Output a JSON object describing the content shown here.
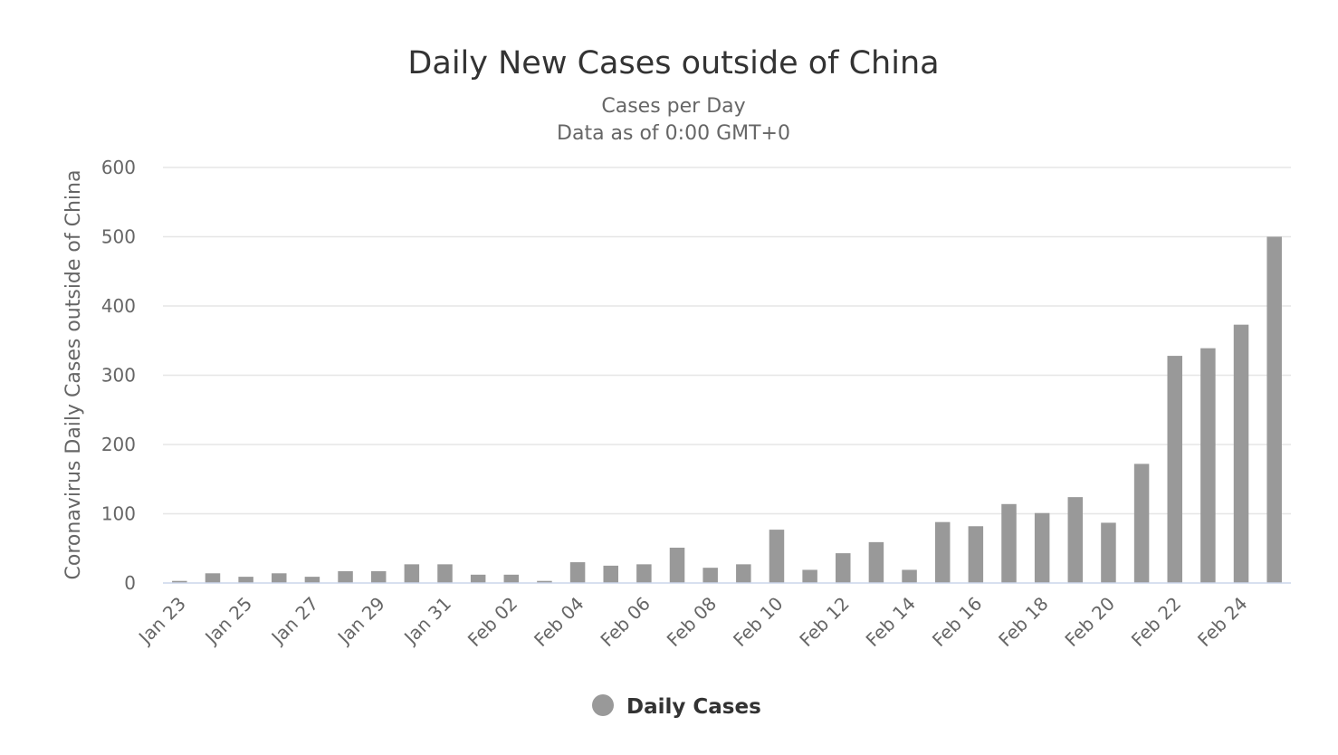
{
  "chart_data": {
    "type": "bar",
    "title": "Daily New Cases outside of China",
    "subtitle_lines": [
      "Cases per Day",
      "Data as of 0:00 GMT+0"
    ],
    "xlabel": "",
    "ylabel": "Coronavirus Daily Cases outside of China",
    "ylim": [
      0,
      600
    ],
    "yticks": [
      0,
      100,
      200,
      300,
      400,
      500,
      600
    ],
    "grid": true,
    "legend_position": "bottom-center",
    "categories": [
      "Jan 23",
      "Jan 24",
      "Jan 25",
      "Jan 26",
      "Jan 27",
      "Jan 28",
      "Jan 29",
      "Jan 30",
      "Jan 31",
      "Feb 01",
      "Feb 02",
      "Feb 03",
      "Feb 04",
      "Feb 05",
      "Feb 06",
      "Feb 07",
      "Feb 08",
      "Feb 09",
      "Feb 10",
      "Feb 11",
      "Feb 12",
      "Feb 13",
      "Feb 14",
      "Feb 15",
      "Feb 16",
      "Feb 17",
      "Feb 18",
      "Feb 19",
      "Feb 20",
      "Feb 21",
      "Feb 22",
      "Feb 23",
      "Feb 24",
      "Feb 25"
    ],
    "xtick_labels": [
      "Jan 23",
      "",
      "Jan 25",
      "",
      "Jan 27",
      "",
      "Jan 29",
      "",
      "Jan 31",
      "",
      "Feb 02",
      "",
      "Feb 04",
      "",
      "Feb 06",
      "",
      "Feb 08",
      "",
      "Feb 10",
      "",
      "Feb 12",
      "",
      "Feb 14",
      "",
      "Feb 16",
      "",
      "Feb 18",
      "",
      "Feb 20",
      "",
      "Feb 22",
      "",
      "Feb 24",
      ""
    ],
    "series": [
      {
        "name": "Daily Cases",
        "color": "#999999",
        "values": [
          3,
          14,
          9,
          14,
          9,
          17,
          17,
          27,
          27,
          12,
          12,
          3,
          30,
          25,
          27,
          51,
          22,
          27,
          77,
          19,
          43,
          59,
          19,
          88,
          82,
          114,
          101,
          124,
          87,
          172,
          328,
          339,
          373,
          500
        ]
      }
    ]
  }
}
